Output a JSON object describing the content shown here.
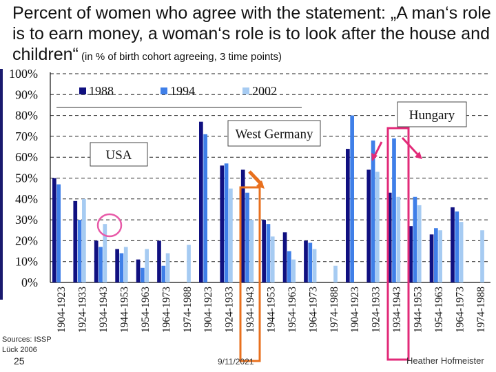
{
  "slide": {
    "title_main": "Percent of women who agree with the statement: „A man‘s role is to earn money, a woman‘s role is to look after the house and children“",
    "title_sub": " (in % of birth cohort agreeing, 3 time points)",
    "sources_line1": "Sources: ISSP",
    "sources_line2": "Lück 2006",
    "slide_number": "25",
    "date": "9/11/2021",
    "author": "Heather Hofmeister"
  },
  "chart_data": {
    "type": "bar",
    "ylim": [
      0,
      100
    ],
    "yticks": [
      "0%",
      "10%",
      "20%",
      "30%",
      "40%",
      "50%",
      "60%",
      "70%",
      "80%",
      "90%",
      "100%"
    ],
    "categories": [
      "1904-1923",
      "1924-1933",
      "1934-1943",
      "1944-1953",
      "1954-1963",
      "1964-1973",
      "1974-1988",
      "1904-1923",
      "1924-1933",
      "1934-1943",
      "1944-1953",
      "1954-1963",
      "1964-1973",
      "1974-1988",
      "1904-1923",
      "1924-1933",
      "1934-1943",
      "1944-1953",
      "1954-1963",
      "1964-1973",
      "1974-1988"
    ],
    "groups": [
      {
        "label": "USA",
        "start": 0,
        "count": 7
      },
      {
        "label": "West Germany",
        "start": 7,
        "count": 7
      },
      {
        "label": "Hungary",
        "start": 14,
        "count": 7
      }
    ],
    "series": [
      {
        "name": "1988",
        "color": "#101080",
        "values": [
          50,
          39,
          20,
          16,
          11,
          20,
          null,
          77,
          56,
          54,
          30,
          24,
          20,
          null,
          64,
          54,
          43,
          27,
          23,
          36,
          null
        ]
      },
      {
        "name": "1994",
        "color": "#3f7fe8",
        "values": [
          47,
          30,
          17,
          14,
          7,
          8,
          null,
          71,
          57,
          43,
          28,
          15,
          19,
          null,
          80,
          68,
          69,
          41,
          26,
          34,
          null
        ]
      },
      {
        "name": "2002",
        "color": "#a6cbf2",
        "values": [
          null,
          40,
          28,
          17,
          16,
          14,
          18,
          null,
          45,
          30,
          22,
          11,
          16,
          8,
          null,
          53,
          41,
          37,
          25,
          29,
          25
        ]
      }
    ],
    "legend_position": "top"
  },
  "colors": {
    "highlight_circle": "#e85aa8",
    "orange_box": "#e8701e",
    "pink_box": "#e22a78"
  }
}
